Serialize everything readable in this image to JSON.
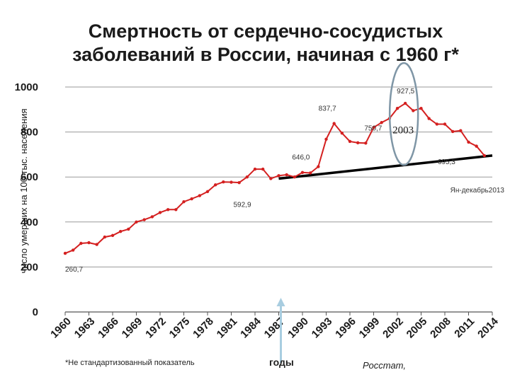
{
  "chart_data": {
    "type": "line",
    "title": "Смертность от сердечно-сосудистых заболеваний в России, начиная с 1960 г*",
    "ylabel": "число умерших на 100 тыс. населения",
    "xlabel": "годы",
    "ylim": [
      0,
      1000
    ],
    "yticks": [
      0,
      200,
      400,
      600,
      800,
      1000
    ],
    "xlim": [
      1960,
      2014
    ],
    "xticks": [
      1960,
      1963,
      1966,
      1969,
      1972,
      1975,
      1978,
      1981,
      1984,
      1987,
      1990,
      1993,
      1996,
      1999,
      2002,
      2005,
      2008,
      2011,
      2014
    ],
    "grid": "horizontal",
    "series": [
      {
        "color": "#d42020",
        "x": [
          1960,
          1961,
          1962,
          1963,
          1964,
          1965,
          1966,
          1967,
          1968,
          1969,
          1970,
          1971,
          1972,
          1973,
          1974,
          1975,
          1976,
          1977,
          1978,
          1979,
          1980,
          1981,
          1982,
          1983,
          1984,
          1985,
          1986,
          1987,
          1988,
          1989,
          1990,
          1991,
          1992,
          1993,
          1994,
          1995,
          1996,
          1997,
          1998,
          1999,
          2000,
          2001,
          2002,
          2003,
          2004,
          2005,
          2006,
          2007,
          2008,
          2009,
          2010,
          2011,
          2012,
          2013
        ],
        "y": [
          260.7,
          275,
          305,
          308,
          300,
          333,
          340,
          358,
          368,
          400,
          410,
          423,
          442,
          455,
          455,
          490,
          503,
          517,
          535,
          565,
          578,
          577,
          575,
          600,
          635,
          635,
          592.9,
          606,
          610,
          600,
          620,
          618,
          646,
          768,
          837.7,
          795,
          758,
          752,
          750.7,
          820,
          842,
          860,
          905,
          927.5,
          895,
          905,
          860,
          835,
          835,
          802,
          806,
          755,
          737,
          695.3
        ]
      }
    ],
    "annotations": {
      "first": "260,7",
      "low1987": "592,9",
      "local1992": "646,0",
      "peak1994": "837,7",
      "low1998": "750,7",
      "peak2003": "927,5",
      "last2013": "695,3",
      "year_circle": "2003",
      "range_label": "Ян-декабрь2013"
    },
    "trend_line": {
      "from": [
        1987,
        592.9
      ],
      "to": [
        2014,
        695.3
      ],
      "color": "#000000"
    }
  },
  "footer": {
    "note": "*Не стандартизованный показатель",
    "source": "Росстат,"
  }
}
